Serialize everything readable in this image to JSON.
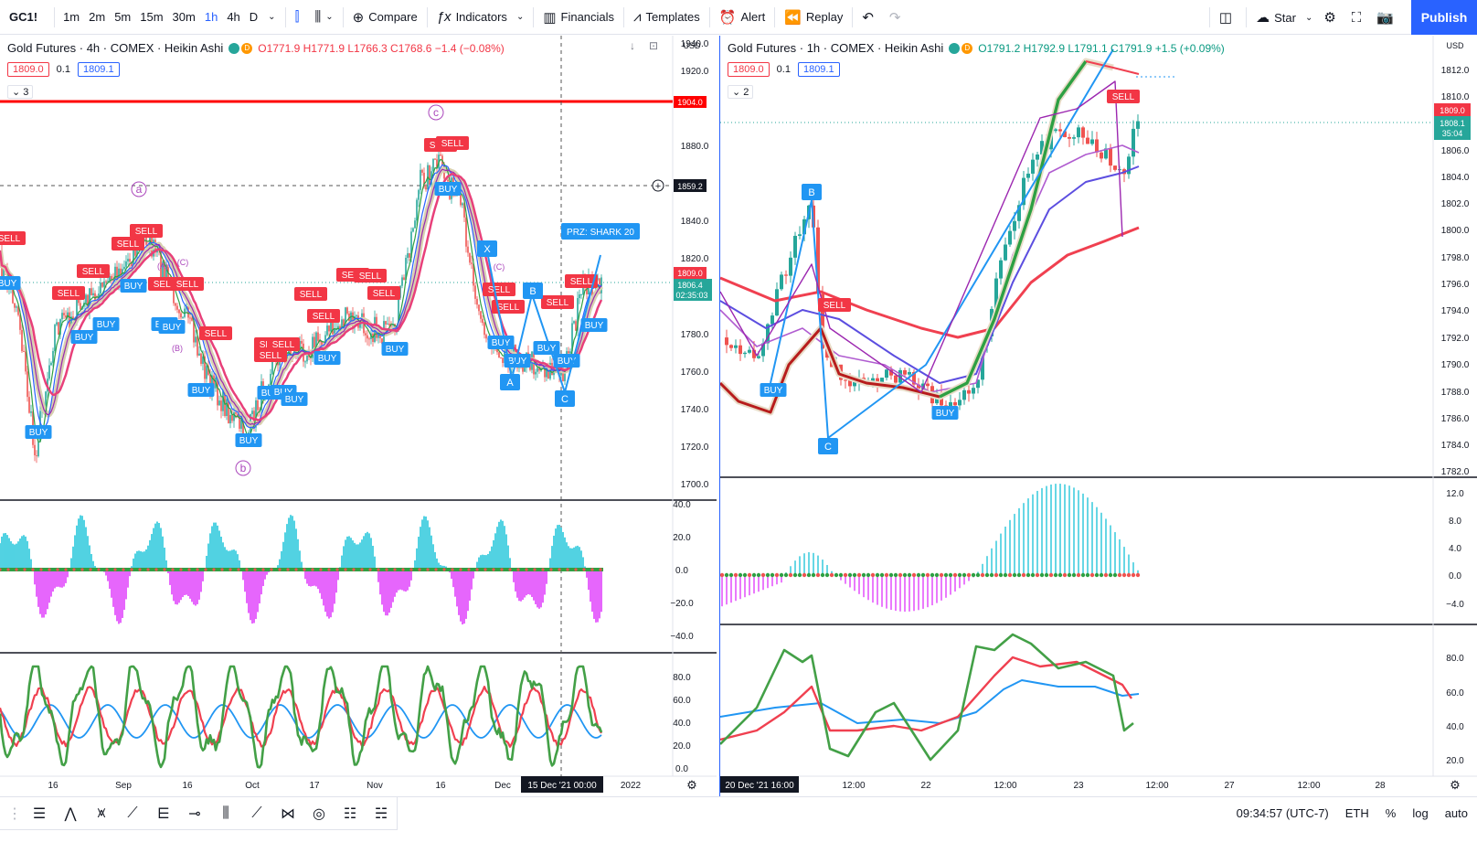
{
  "toolbar": {
    "symbol": "GC1!",
    "intervals": [
      "1m",
      "2m",
      "5m",
      "15m",
      "30m",
      "1h",
      "4h",
      "D"
    ],
    "active_interval": "1h",
    "compare": "Compare",
    "indicators": "Indicators",
    "financials": "Financials",
    "templates": "Templates",
    "alert": "Alert",
    "replay": "Replay",
    "star": "Star",
    "publish": "Publish"
  },
  "left": {
    "title": "Gold Futures · 4h · COMEX · Heikin Ashi",
    "ohlc": "O1771.9 H1771.9 L1766.3 C1768.6 −1.4 (−0.08%)",
    "bid": "1809.0",
    "spread": "0.1",
    "ask": "1809.1",
    "collapse_count": "3",
    "currency": "USD",
    "price_ticks": [
      "1940.0",
      "1920.0",
      "1880.0",
      "1840.0",
      "1820.0",
      "1780.0",
      "1760.0",
      "1740.0",
      "1720.0",
      "1700.0"
    ],
    "red_level": "1904.0",
    "crosshair_price": "1859.2",
    "last_price_red": "1809.0",
    "last_price_green": "1806.4",
    "countdown": "02:35:03",
    "time_ticks": [
      "16",
      "Sep",
      "16",
      "Oct",
      "17",
      "Nov",
      "16",
      "Dec",
      "2022"
    ],
    "crosshair_time": "15 Dec '21   00:00",
    "prz_label": "PRZ: SHARK 20",
    "wave_labels": [
      "a",
      "b",
      "c",
      "(A)",
      "(B)",
      "(C)",
      "(C)"
    ],
    "pattern_points": [
      "X",
      "A",
      "B",
      "C"
    ],
    "macd_ticks": [
      "40.0",
      "20.0",
      "0.0",
      "−20.0",
      "−40.0"
    ],
    "stoch_ticks": [
      "80.0",
      "60.0",
      "40.0",
      "20.0",
      "0.0"
    ],
    "signals": [
      "SELL",
      "BUY"
    ]
  },
  "right": {
    "title": "Gold Futures · 1h · COMEX · Heikin Ashi",
    "ohlc": "O1791.2 H1792.9 L1791.1 C1791.9 +1.5 (+0.09%)",
    "bid": "1809.0",
    "spread": "0.1",
    "ask": "1809.1",
    "collapse_count": "2",
    "currency": "USD",
    "price_ticks": [
      "1812.0",
      "1810.0",
      "1806.0",
      "1804.0",
      "1802.0",
      "1800.0",
      "1798.0",
      "1796.0",
      "1794.0",
      "1792.0",
      "1790.0",
      "1788.0",
      "1786.0",
      "1784.0",
      "1782.0"
    ],
    "last_price_red": "1809.0",
    "last_price_green": "1808.1",
    "countdown": "35:04",
    "time_ticks": [
      "12:00",
      "22",
      "12:00",
      "23",
      "12:00",
      "27",
      "12:00",
      "28"
    ],
    "crosshair_time": "20 Dec '21   16:00",
    "pattern_points": [
      "B",
      "C"
    ],
    "macd_ticks": [
      "12.0",
      "8.0",
      "4.0",
      "0.0",
      "−4.0"
    ],
    "stoch_ticks": [
      "80.0",
      "60.0",
      "40.0",
      "20.0"
    ],
    "signals": [
      "SELL",
      "BUY"
    ]
  },
  "status": {
    "time": "09:34:57 (UTC-7)",
    "session": "ETH",
    "percent": "%",
    "log": "log",
    "auto": "auto"
  },
  "colors": {
    "accent": "#2962ff",
    "sell": "#f23645",
    "buy": "#2196f3",
    "ma_red": "#f04050",
    "ma_green": "#2ea043",
    "ma_purple": "#9c27b0",
    "ma_blue": "#2962ff",
    "hist_up": "#26c6da",
    "hist_down": "#e040fb"
  }
}
